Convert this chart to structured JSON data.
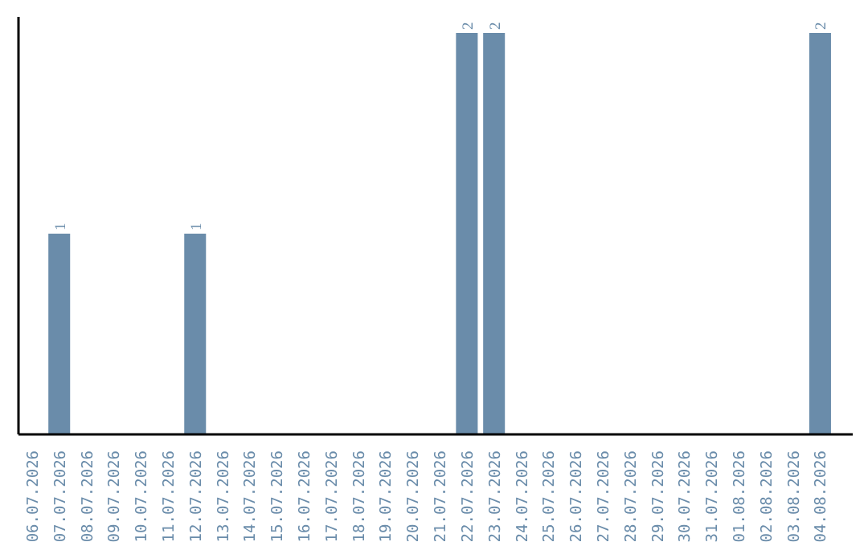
{
  "chart_data": {
    "type": "bar",
    "categories": [
      "06.07.2026",
      "07.07.2026",
      "08.07.2026",
      "09.07.2026",
      "10.07.2026",
      "11.07.2026",
      "12.07.2026",
      "13.07.2026",
      "14.07.2026",
      "15.07.2026",
      "16.07.2026",
      "17.07.2026",
      "18.07.2026",
      "19.07.2026",
      "20.07.2026",
      "21.07.2026",
      "22.07.2026",
      "23.07.2026",
      "24.07.2026",
      "25.07.2026",
      "26.07.2026",
      "27.07.2026",
      "28.07.2026",
      "29.07.2026",
      "30.07.2026",
      "31.07.2026",
      "01.08.2026",
      "02.08.2026",
      "03.08.2026",
      "04.08.2026"
    ],
    "values": [
      0,
      1,
      0,
      0,
      0,
      0,
      1,
      0,
      0,
      0,
      0,
      0,
      0,
      0,
      0,
      0,
      2,
      2,
      0,
      0,
      0,
      0,
      0,
      0,
      0,
      0,
      0,
      0,
      0,
      2
    ],
    "color": "#6a8caa",
    "ylim": [
      0,
      2.08
    ],
    "value_labels": [
      null,
      "1",
      null,
      null,
      null,
      null,
      "1",
      null,
      null,
      null,
      null,
      null,
      null,
      null,
      null,
      null,
      "2",
      "2",
      null,
      null,
      null,
      null,
      null,
      null,
      null,
      null,
      null,
      null,
      null,
      "2"
    ],
    "tick_labels": "x"
  }
}
